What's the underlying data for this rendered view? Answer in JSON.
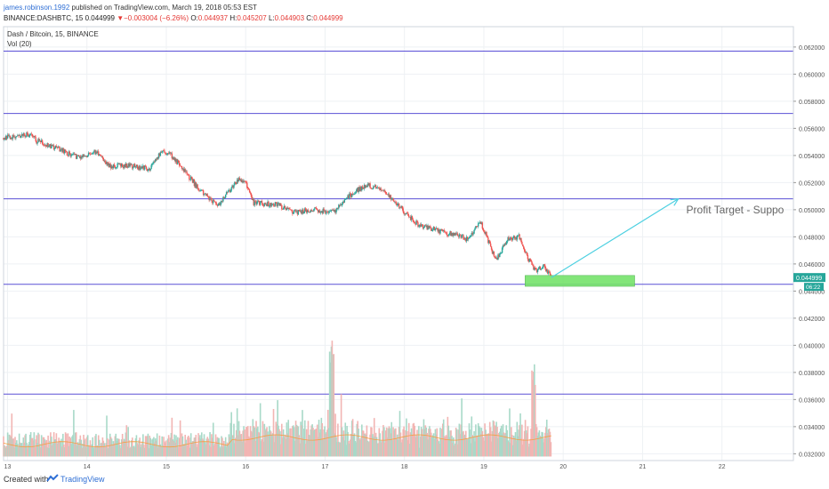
{
  "header": {
    "author": "james.robinson.1992",
    "published": "published on TradingView.com, March 19, 2018 05:53 EST",
    "symbol": "BINANCE:DASHBTC, 15",
    "last": "0.044999",
    "change": "−0.003004 (−6.26%)",
    "open_label": "O:",
    "open": "0.044937",
    "high_label": "H:",
    "high": "0.045207",
    "low_label": "L:",
    "low": "0.044903",
    "close_label": "C:",
    "close": "0.044999"
  },
  "pane": {
    "title": "Dash / Bitcoin, 15, BINANCE",
    "volume_label": "Vol (20)"
  },
  "chart_data": {
    "type": "candlestick",
    "y_axis": {
      "range": [
        0.0315,
        0.0635
      ],
      "ticks": [
        "0.062000",
        "0.060000",
        "0.058000",
        "0.056000",
        "0.054000",
        "0.052000",
        "0.050000",
        "0.048000",
        "0.046000",
        "0.044000",
        "0.042000",
        "0.040000",
        "0.038000",
        "0.036000",
        "0.034000",
        "0.032000"
      ],
      "tick_values": [
        0.062,
        0.06,
        0.058,
        0.056,
        0.054,
        0.052,
        0.05,
        0.048,
        0.046,
        0.044,
        0.042,
        0.04,
        0.038,
        0.036,
        0.034,
        0.032
      ]
    },
    "x_axis": {
      "range": [
        12.95,
        22.9
      ],
      "ticks": [
        "13",
        "14",
        "15",
        "16",
        "17",
        "18",
        "19",
        "20",
        "21",
        "22"
      ],
      "tick_values": [
        13,
        14,
        15,
        16,
        17,
        18,
        19,
        20,
        21,
        22
      ]
    },
    "price_path": [
      [
        12.95,
        0.0553
      ],
      [
        13.3,
        0.0556
      ],
      [
        13.35,
        0.0551
      ],
      [
        13.6,
        0.0546
      ],
      [
        13.9,
        0.0538
      ],
      [
        14.1,
        0.0543
      ],
      [
        14.3,
        0.0532
      ],
      [
        14.5,
        0.0533
      ],
      [
        14.8,
        0.053
      ],
      [
        14.95,
        0.0545
      ],
      [
        15.1,
        0.0538
      ],
      [
        15.4,
        0.0516
      ],
      [
        15.65,
        0.0503
      ],
      [
        15.9,
        0.0522
      ],
      [
        16.0,
        0.052
      ],
      [
        16.1,
        0.0505
      ],
      [
        16.4,
        0.0504
      ],
      [
        16.6,
        0.0498
      ],
      [
        16.9,
        0.05
      ],
      [
        17.1,
        0.0498
      ],
      [
        17.3,
        0.051
      ],
      [
        17.5,
        0.0518
      ],
      [
        17.7,
        0.0516
      ],
      [
        17.9,
        0.0505
      ],
      [
        18.05,
        0.0495
      ],
      [
        18.2,
        0.0488
      ],
      [
        18.4,
        0.0485
      ],
      [
        18.6,
        0.0482
      ],
      [
        18.8,
        0.0478
      ],
      [
        18.95,
        0.0492
      ],
      [
        19.05,
        0.0478
      ],
      [
        19.15,
        0.0462
      ],
      [
        19.3,
        0.0478
      ],
      [
        19.45,
        0.048
      ],
      [
        19.55,
        0.0465
      ],
      [
        19.65,
        0.0455
      ],
      [
        19.75,
        0.0458
      ],
      [
        19.85,
        0.045
      ]
    ],
    "horizontal_lines": [
      0.0617,
      0.0571,
      0.0508,
      0.0445,
      0.0364
    ],
    "support_zone": {
      "x": [
        19.52,
        20.9
      ],
      "y": [
        0.04435,
        0.04515
      ]
    },
    "arrow": {
      "from": [
        19.85,
        0.045
      ],
      "to": [
        21.45,
        0.0508
      ]
    },
    "annotation": {
      "text": "Profit Target - Suppo",
      "x": 21.55,
      "y": 0.05
    },
    "last_price_label": "0.044999",
    "countdown_label": "06:22",
    "colors": {
      "up": "#26a69a",
      "down": "#ef5350",
      "lines": "#5a50d6",
      "arrow": "#4dd0e1",
      "zone": "#76e26a",
      "grid": "#eef1f4",
      "volume_up": "#a8d9c8",
      "volume_down": "#f2b5b3",
      "volume_ma": "#f59e42"
    }
  },
  "footer": {
    "created": "Created with",
    "brand": "TradingView"
  }
}
